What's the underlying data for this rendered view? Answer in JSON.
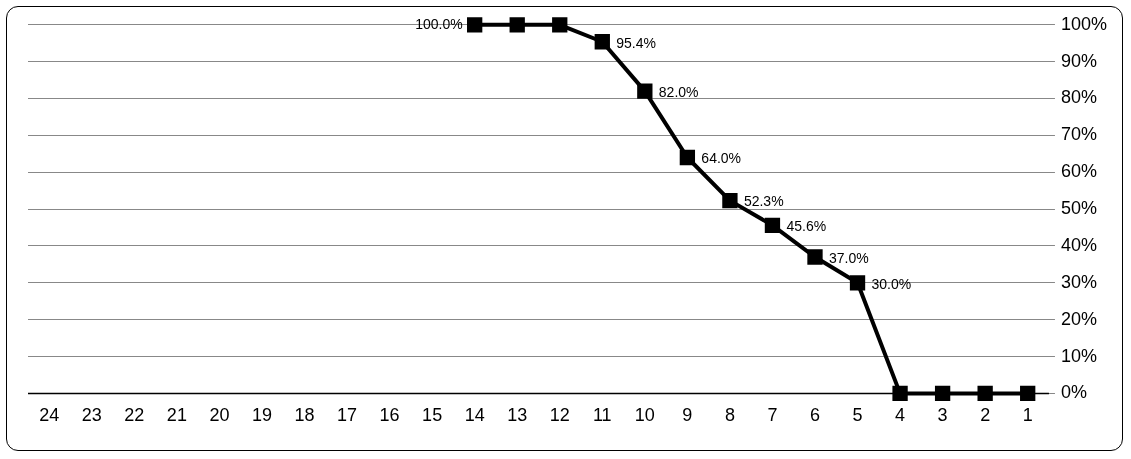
{
  "chart_data": {
    "type": "line",
    "categories": [
      "24",
      "23",
      "22",
      "21",
      "20",
      "19",
      "18",
      "17",
      "16",
      "15",
      "14",
      "13",
      "12",
      "11",
      "10",
      "9",
      "8",
      "7",
      "6",
      "5",
      "4",
      "3",
      "2",
      "1"
    ],
    "series": [
      {
        "color": "#000000",
        "values": [
          null,
          null,
          null,
          null,
          null,
          null,
          null,
          null,
          null,
          null,
          100,
          100,
          100,
          95.4,
          82.0,
          64.0,
          52.3,
          45.6,
          37.0,
          30.0,
          0,
          0,
          0,
          0
        ],
        "value_labels": [
          null,
          null,
          null,
          null,
          null,
          null,
          null,
          null,
          null,
          null,
          "100.0%",
          null,
          null,
          "95.4%",
          "82.0%",
          "64.0%",
          "52.3%",
          "45.6%",
          "37.0%",
          "30.0%",
          null,
          null,
          null,
          null
        ]
      }
    ],
    "ylim": [
      0,
      100
    ],
    "yticks": [
      {
        "value": 0,
        "label": "0%"
      },
      {
        "value": 10,
        "label": "10%"
      },
      {
        "value": 20,
        "label": "20%"
      },
      {
        "value": 30,
        "label": "30%"
      },
      {
        "value": 40,
        "label": "40%"
      },
      {
        "value": 50,
        "label": "50%"
      },
      {
        "value": 60,
        "label": "60%"
      },
      {
        "value": 70,
        "label": "70%"
      },
      {
        "value": 80,
        "label": "80%"
      },
      {
        "value": 90,
        "label": "90%"
      },
      {
        "value": 100,
        "label": "100%"
      }
    ],
    "grid": "y",
    "marker": "square",
    "line_style": "solid",
    "legend": false
  }
}
